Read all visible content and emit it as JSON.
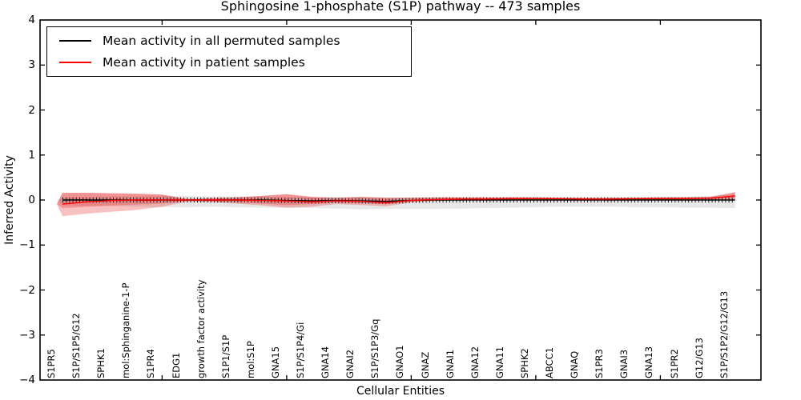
{
  "page": {
    "background": "#ffffff"
  },
  "chart_data": {
    "type": "line",
    "title": "Sphingosine 1-phosphate (S1P) pathway -- 473 samples",
    "xlabel": "Cellular Entities",
    "ylabel": "Inferred Activity",
    "ylim": [
      -4,
      4
    ],
    "ytick_values": [
      4,
      3,
      2,
      1,
      0,
      -1,
      -2,
      -3,
      -4
    ],
    "ytick_labels": [
      "4",
      "3",
      "2",
      "1",
      "0",
      "−1",
      "−2",
      "−3",
      "−4"
    ],
    "grid": false,
    "legend_position": "upper left",
    "frame_tick_indices": [
      4,
      9,
      14,
      19,
      24
    ],
    "categories": [
      "S1PR5",
      "S1P/S1P5/G12",
      "SPHK1",
      "mol:Sphinganine-1-P",
      "S1PR4",
      "EDG1",
      "growth factor activity",
      "S1P1/S1P",
      "mol:S1P",
      "GNA15",
      "S1P/S1P4/Gi",
      "GNA14",
      "GNAI2",
      "S1P/S1P3/Gq",
      "GNAO1",
      "GNAZ",
      "GNAI1",
      "GNA12",
      "GNA11",
      "SPHK2",
      "ABCC1",
      "GNAQ",
      "S1PR3",
      "GNAI3",
      "GNA13",
      "S1PR2",
      "G12/G13",
      "S1P/S1P2/G12/G13"
    ],
    "series": [
      {
        "name": "Mean activity in all permuted samples",
        "color": "#000000",
        "marker": "dense-vertical-ticks",
        "values": [
          0,
          0,
          0,
          0,
          0,
          0,
          0,
          0,
          0,
          -0.01,
          -0.02,
          -0.01,
          -0.02,
          -0.03,
          -0.01,
          0,
          0,
          0,
          0,
          0,
          0,
          0,
          0,
          0,
          0,
          0,
          0,
          0
        ],
        "band": {
          "color": "rgba(0,0,0,0.09)",
          "upper": [
            0.06,
            0.07,
            0.08,
            0.08,
            0.09,
            0.09,
            0.08,
            0.08,
            0.07,
            0.07,
            0.06,
            0.07,
            0.07,
            0.06,
            0.06,
            0.05,
            0.05,
            0.04,
            0.04,
            0.04,
            0.04,
            0.04,
            0.05,
            0.05,
            0.06,
            0.07,
            0.09,
            0.11
          ],
          "lower": [
            -0.12,
            -0.13,
            -0.14,
            -0.15,
            -0.16,
            -0.16,
            -0.15,
            -0.16,
            -0.17,
            -0.17,
            -0.18,
            -0.19,
            -0.21,
            -0.2,
            -0.2,
            -0.2,
            -0.19,
            -0.18,
            -0.17,
            -0.16,
            -0.15,
            -0.15,
            -0.15,
            -0.16,
            -0.16,
            -0.17,
            -0.17,
            -0.18
          ]
        }
      },
      {
        "name": "Mean activity in patient samples",
        "color": "#ff0000",
        "marker": "none",
        "values": [
          -0.09,
          -0.04,
          -0.01,
          0,
          0,
          0,
          0,
          0,
          -0.01,
          -0.02,
          -0.04,
          -0.02,
          -0.03,
          -0.06,
          -0.01,
          0.01,
          0.02,
          0.02,
          0.03,
          0.03,
          0.03,
          0.02,
          0.02,
          0.03,
          0.03,
          0.03,
          0.04,
          0.09
        ],
        "band_outer": {
          "color": "rgba(230,30,30,0.28)",
          "upper": [
            0.16,
            0.16,
            0.15,
            0.14,
            0.12,
            0.02,
            0.04,
            0.06,
            0.09,
            0.13,
            0.07,
            0.05,
            0.07,
            0.05,
            0.05,
            0.06,
            0.06,
            0.06,
            0.06,
            0.06,
            0.05,
            0.05,
            0.05,
            0.05,
            0.06,
            0.06,
            0.07,
            0.17
          ],
          "lower": [
            -0.36,
            -0.3,
            -0.26,
            -0.22,
            -0.15,
            -0.03,
            -0.05,
            -0.08,
            -0.12,
            -0.17,
            -0.15,
            -0.09,
            -0.11,
            -0.14,
            -0.05,
            -0.02,
            -0.01,
            -0.01,
            -0.01,
            -0.01,
            -0.01,
            -0.01,
            -0.01,
            0,
            0,
            0.01,
            0.01,
            0.02
          ]
        },
        "band_inner": {
          "color": "rgba(230,30,30,0.28)",
          "upper": [
            0.16,
            0.16,
            0.15,
            0.14,
            0.12,
            0.02,
            0.04,
            0.06,
            0.09,
            0.13,
            0.07,
            0.05,
            0.07,
            0.05,
            0.05,
            0.06,
            0.06,
            0.06,
            0.06,
            0.06,
            0.05,
            0.05,
            0.05,
            0.05,
            0.06,
            0.06,
            0.07,
            0.17
          ],
          "lower": [
            -0.18,
            -0.15,
            -0.12,
            -0.1,
            -0.08,
            -0.02,
            -0.03,
            -0.05,
            -0.08,
            -0.11,
            -0.09,
            -0.06,
            -0.07,
            -0.09,
            -0.03,
            -0.01,
            0,
            0,
            0.01,
            0.01,
            0.01,
            0.01,
            0.01,
            0.01,
            0.01,
            0.01,
            0.02,
            0.03
          ]
        }
      }
    ]
  }
}
